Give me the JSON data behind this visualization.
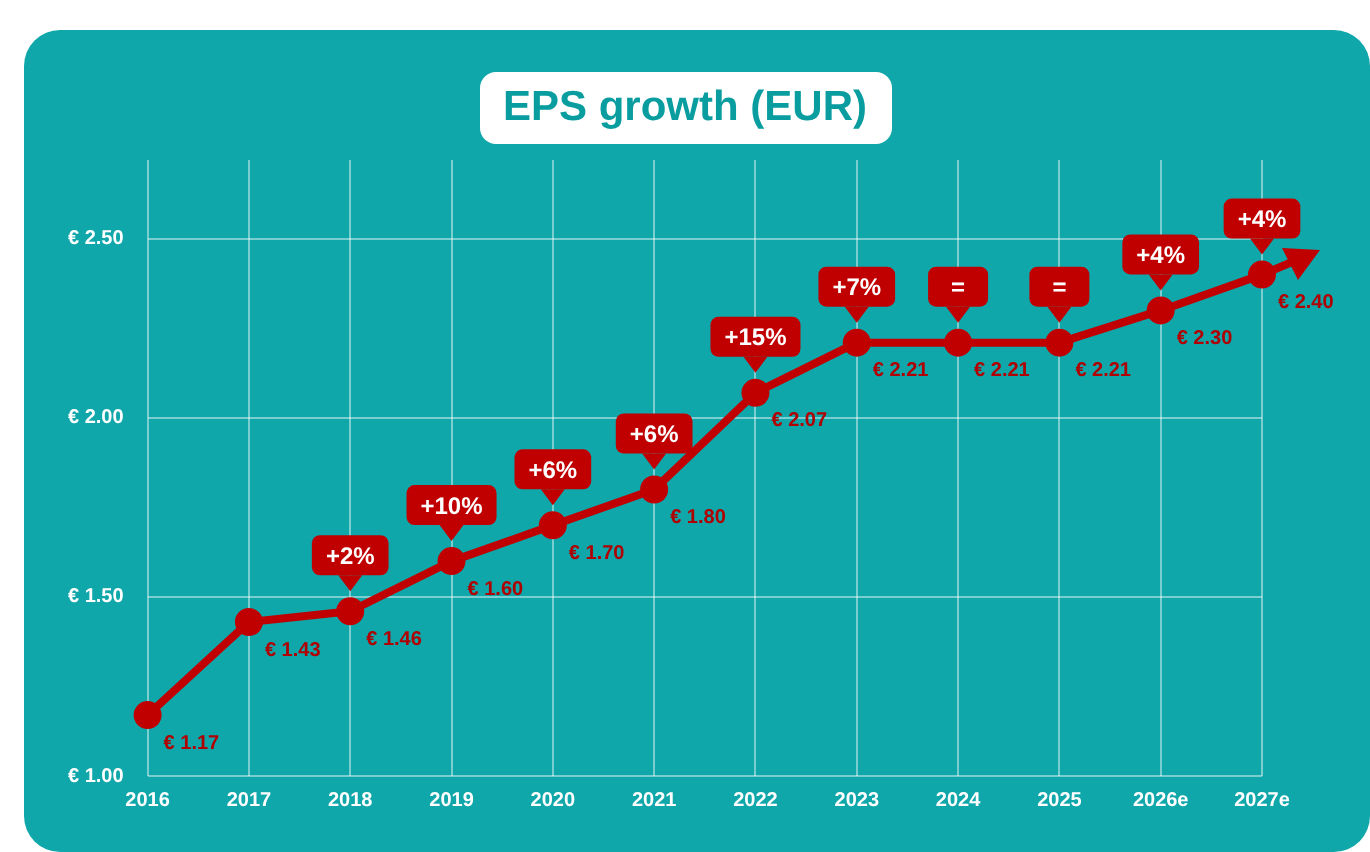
{
  "chart_data": {
    "type": "line",
    "title": "EPS growth (EUR)",
    "categories": [
      "2016",
      "2017",
      "2018",
      "2019",
      "2020",
      "2021",
      "2022",
      "2023",
      "2024",
      "2025",
      "2026e",
      "2027e"
    ],
    "series": [
      {
        "color": "#c00000",
        "values": [
          1.17,
          1.43,
          1.46,
          1.6,
          1.7,
          1.8,
          2.07,
          2.21,
          2.21,
          2.21,
          2.3,
          2.4
        ],
        "value_labels": [
          "€ 1.17",
          "€ 1.43",
          "€ 1.46",
          "€ 1.60",
          "€ 1.70",
          "€ 1.80",
          "€ 2.07",
          "€ 2.21",
          "€ 2.21",
          "€ 2.21",
          "€ 2.30",
          "€ 2.40"
        ]
      }
    ],
    "ylim": [
      1.0,
      2.72
    ],
    "yticks": [
      {
        "value": 1.0,
        "label": "€ 1.00"
      },
      {
        "value": 1.5,
        "label": "€ 1.50"
      },
      {
        "value": 2.0,
        "label": "€ 2.00"
      },
      {
        "value": 2.5,
        "label": "€ 2.50"
      }
    ],
    "annotations": [
      {
        "text": "+2%",
        "x": "2018",
        "y": 1.46
      },
      {
        "text": "+10%",
        "x": "2019",
        "y": 1.6
      },
      {
        "text": "+6%",
        "x": "2020",
        "y": 1.7
      },
      {
        "text": "+6%",
        "x": "2021",
        "y": 1.8
      },
      {
        "text": "+15%",
        "x": "2022",
        "y": 2.07
      },
      {
        "text": "+7%",
        "x": "2023",
        "y": 2.21
      },
      {
        "text": "=",
        "x": "2024",
        "y": 2.21
      },
      {
        "text": "=",
        "x": "2025",
        "y": 2.21
      },
      {
        "text": "+4%",
        "x": "2026e",
        "y": 2.3
      },
      {
        "text": "+4%",
        "x": "2027e",
        "y": 2.4
      }
    ],
    "grid": true,
    "legend": false,
    "marker": "circle",
    "line_style": "solid"
  }
}
